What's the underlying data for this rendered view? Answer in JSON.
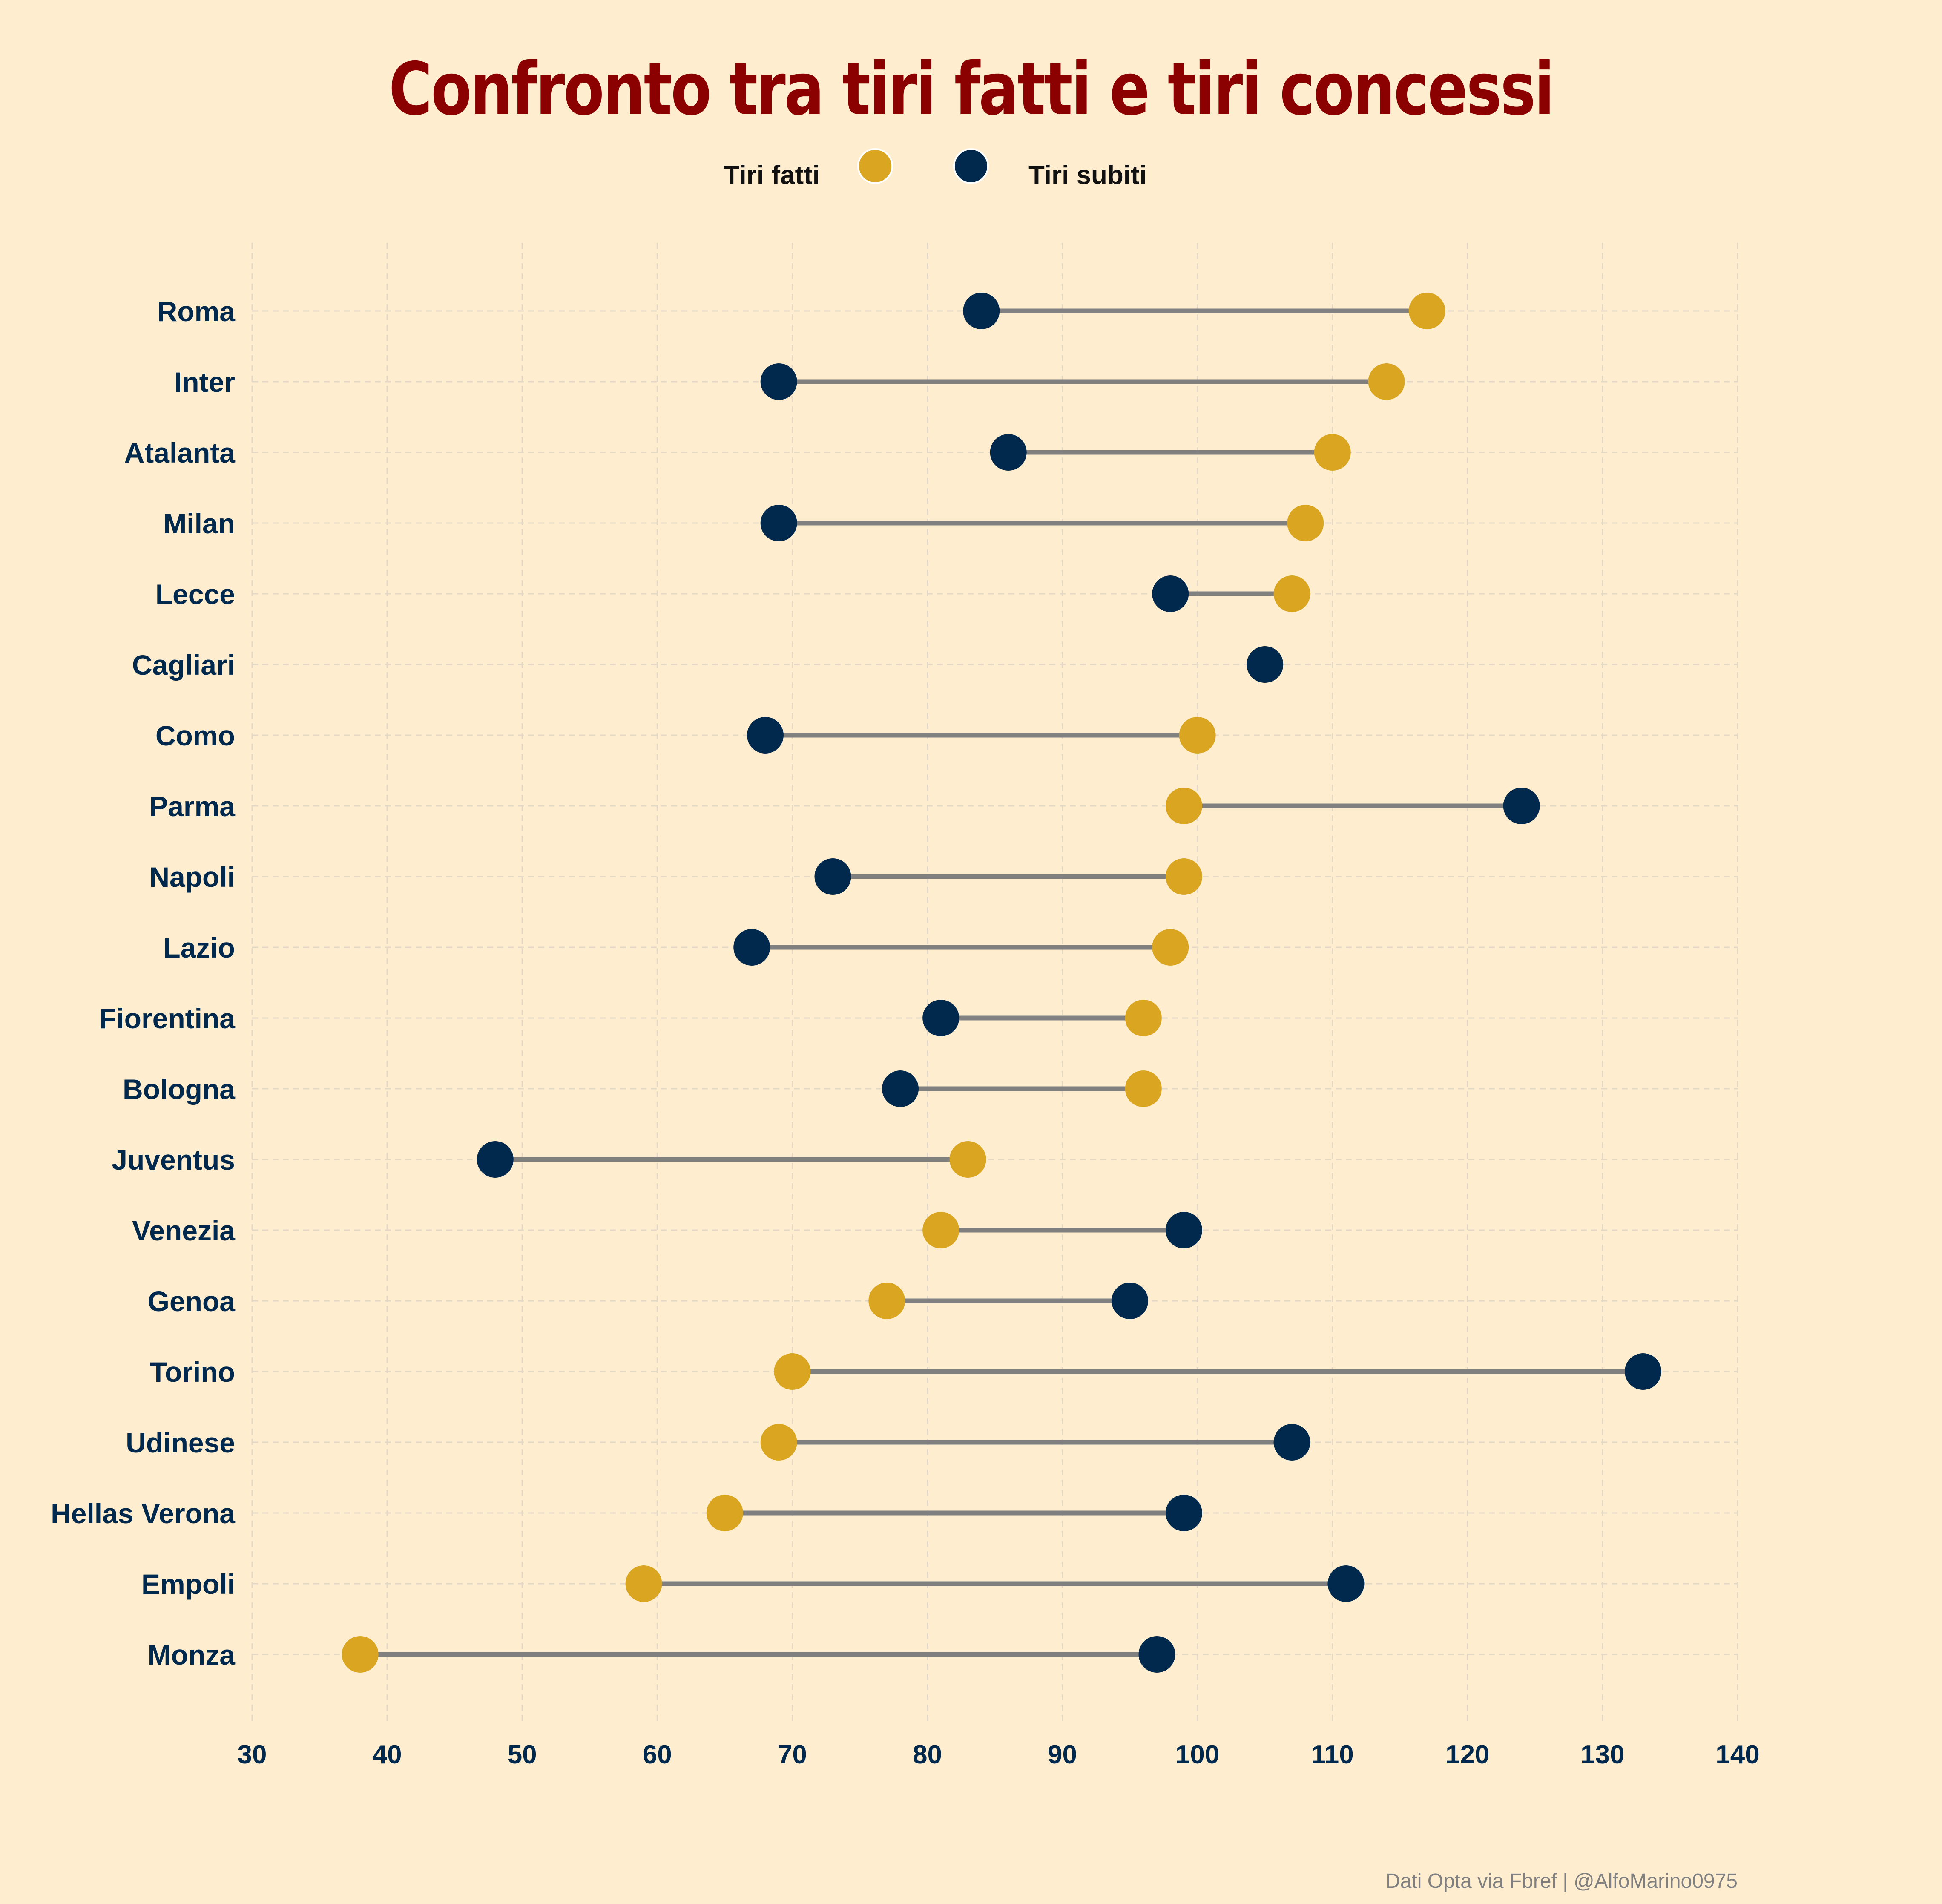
{
  "chart_data": {
    "type": "dumbbell",
    "title": "Confronto tra tiri fatti e tiri concessi",
    "legend": {
      "position": "top-center",
      "items": [
        "Tiri fatti",
        "Tiri subiti"
      ]
    },
    "credit": "Dati Opta via Fbref | @AlfoMarino0975",
    "xlim": [
      30,
      140
    ],
    "xticks": [
      "30",
      "40",
      "50",
      "60",
      "70",
      "80",
      "90",
      "100",
      "110",
      "120",
      "130",
      "140"
    ],
    "grid": true,
    "colors": {
      "tiri_fatti": "#DAA520",
      "tiri_subiti": "#00294D",
      "connector": "#808080",
      "title": "#8B0000",
      "background": "#FFEDD0"
    },
    "categories": [
      "Roma",
      "Inter",
      "Atalanta",
      "Milan",
      "Lecce",
      "Cagliari",
      "Como",
      "Parma",
      "Napoli",
      "Lazio",
      "Fiorentina",
      "Bologna",
      "Juventus",
      "Venezia",
      "Genoa",
      "Torino",
      "Udinese",
      "Hellas Verona",
      "Empoli",
      "Monza"
    ],
    "series": [
      {
        "name": "Tiri fatti",
        "values": [
          117,
          114,
          110,
          108,
          107,
          105,
          100,
          99,
          99,
          98,
          96,
          96,
          83,
          81,
          77,
          70,
          69,
          65,
          59,
          38
        ]
      },
      {
        "name": "Tiri subiti",
        "values": [
          84,
          69,
          86,
          69,
          98,
          105,
          68,
          124,
          73,
          67,
          81,
          78,
          48,
          99,
          95,
          133,
          107,
          99,
          111,
          97
        ]
      }
    ]
  }
}
